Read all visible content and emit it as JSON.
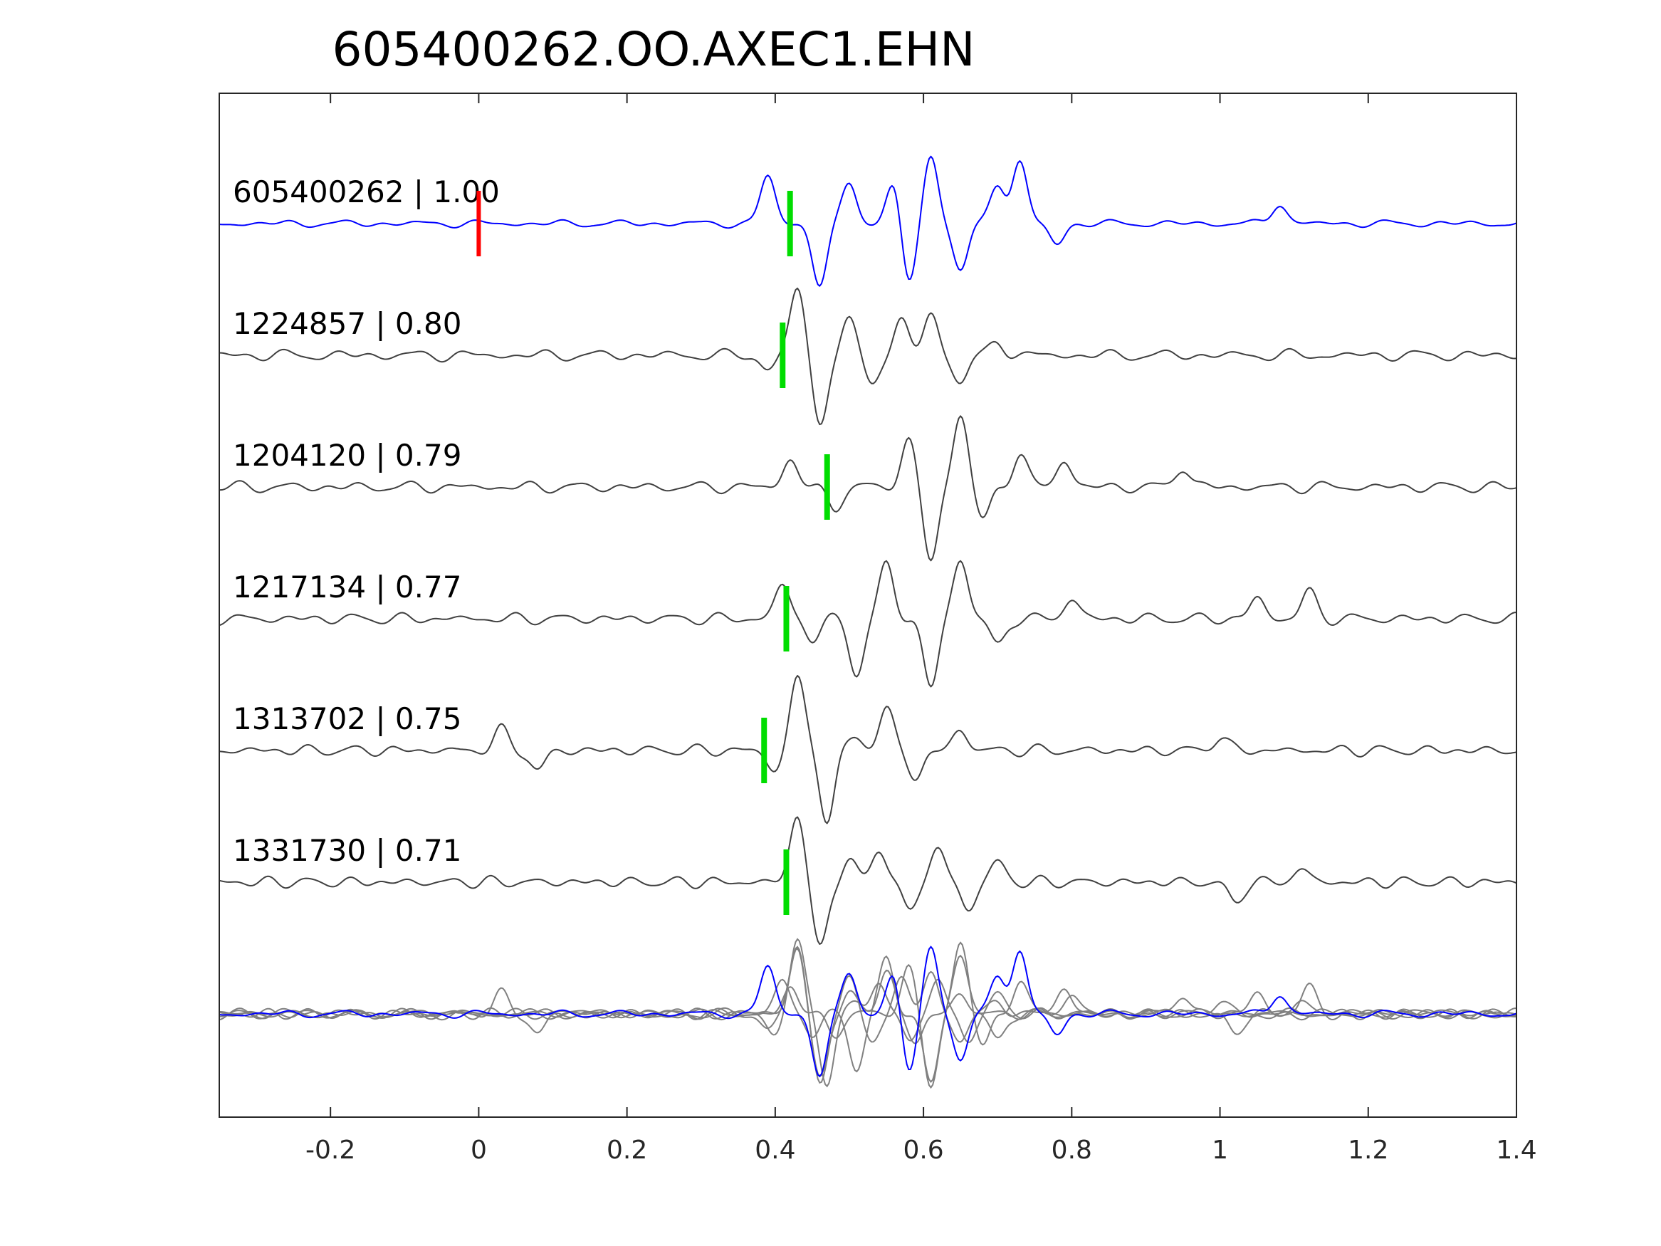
{
  "chart_data": {
    "type": "line",
    "title": "605400262.OO.AXEC1.EHN",
    "xlabel": "",
    "ylabel": "",
    "xlim": [
      -0.35,
      1.4
    ],
    "xticks": [
      -0.2,
      0,
      0.2,
      0.4,
      0.6,
      0.8,
      1,
      1.2,
      1.4
    ],
    "xtick_labels": [
      "-0.2",
      "0",
      "0.2",
      "0.4",
      "0.6",
      "0.8",
      "1",
      "1.2",
      "1.4"
    ],
    "grid": false,
    "legend": "none",
    "colors": {
      "template": "#0000ff",
      "match": "#404040",
      "overlay": "#808080",
      "pick": "#00dd00",
      "origin": "#ff0000",
      "axis": "#262626"
    },
    "origin_marker": {
      "trace_index": 0,
      "x": 0.0
    },
    "traces": [
      {
        "label": "605400262 | 1.00",
        "pick": 0.42,
        "color": "#0000ff",
        "peaks": [
          [
            0.39,
            0.7
          ],
          [
            0.46,
            -0.9
          ],
          [
            0.5,
            0.6
          ],
          [
            0.56,
            0.6
          ],
          [
            0.58,
            -0.9
          ],
          [
            0.61,
            1.0
          ],
          [
            0.65,
            -0.7
          ],
          [
            0.7,
            0.6
          ],
          [
            0.73,
            0.9
          ],
          [
            0.78,
            -0.3
          ],
          [
            1.08,
            0.3
          ]
        ]
      },
      {
        "label": "1224857 | 0.80",
        "pick": 0.41,
        "color": "#404040",
        "peaks": [
          [
            0.39,
            -0.2
          ],
          [
            0.43,
            1.0
          ],
          [
            0.46,
            -1.0
          ],
          [
            0.5,
            0.5
          ],
          [
            0.53,
            -0.4
          ],
          [
            0.57,
            0.5
          ],
          [
            0.61,
            0.6
          ],
          [
            0.65,
            -0.4
          ],
          [
            0.7,
            0.2
          ]
        ]
      },
      {
        "label": "1204120 | 0.79",
        "pick": 0.47,
        "color": "#404040",
        "peaks": [
          [
            0.42,
            0.4
          ],
          [
            0.48,
            -0.3
          ],
          [
            0.58,
            0.7
          ],
          [
            0.61,
            -1.1
          ],
          [
            0.65,
            1.1
          ],
          [
            0.68,
            -0.5
          ],
          [
            0.73,
            0.5
          ],
          [
            0.79,
            0.4
          ],
          [
            0.95,
            0.3
          ]
        ]
      },
      {
        "label": "1217134 | 0.77",
        "pick": 0.415,
        "color": "#404040",
        "peaks": [
          [
            0.41,
            0.5
          ],
          [
            0.45,
            -0.3
          ],
          [
            0.51,
            -0.8
          ],
          [
            0.55,
            0.8
          ],
          [
            0.61,
            -1.0
          ],
          [
            0.65,
            0.9
          ],
          [
            0.7,
            -0.4
          ],
          [
            0.8,
            0.3
          ],
          [
            1.05,
            0.3
          ],
          [
            1.12,
            0.4
          ]
        ]
      },
      {
        "label": "1313702 | 0.75",
        "pick": 0.385,
        "color": "#404040",
        "peaks": [
          [
            0.03,
            0.3
          ],
          [
            0.08,
            -0.3
          ],
          [
            0.4,
            -0.3
          ],
          [
            0.43,
            1.1
          ],
          [
            0.47,
            -1.0
          ],
          [
            0.51,
            0.2
          ],
          [
            0.55,
            0.6
          ],
          [
            0.59,
            -0.4
          ],
          [
            0.65,
            0.3
          ],
          [
            1.0,
            0.2
          ]
        ]
      },
      {
        "label": "1331730 | 0.71",
        "pick": 0.415,
        "color": "#404040",
        "peaks": [
          [
            0.43,
            1.0
          ],
          [
            0.46,
            -1.0
          ],
          [
            0.5,
            0.3
          ],
          [
            0.54,
            0.5
          ],
          [
            0.58,
            -0.4
          ],
          [
            0.62,
            0.5
          ],
          [
            0.66,
            -0.4
          ],
          [
            0.7,
            0.3
          ],
          [
            1.02,
            -0.3
          ],
          [
            1.11,
            0.2
          ]
        ]
      }
    ],
    "overlay": {
      "series_count": 6,
      "template_color": "#0000ff",
      "match_color": "#808080"
    }
  }
}
